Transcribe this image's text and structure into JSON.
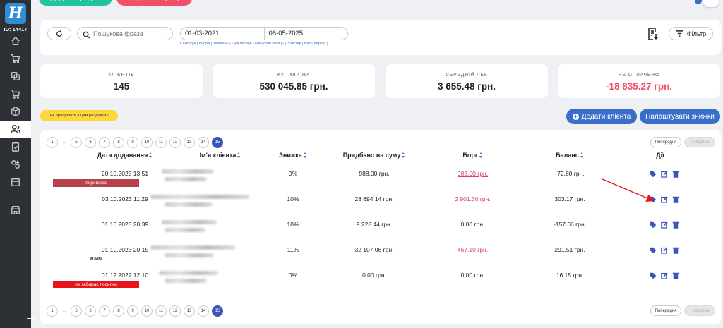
{
  "sidebar": {
    "logo_letter": "H",
    "user_id": "ID: 14417",
    "items": [
      {
        "icon": "home-icon"
      },
      {
        "icon": "cart-icon"
      },
      {
        "icon": "copy-icon"
      },
      {
        "icon": "cart-outline-icon"
      },
      {
        "icon": "box-icon"
      },
      {
        "icon": "clients-icon",
        "active": true
      },
      {
        "icon": "clipboard-check-icon"
      },
      {
        "icon": "circles-icon"
      },
      {
        "icon": "calendar-icon"
      },
      {
        "icon": "store-icon"
      }
    ],
    "collapse_icon": "arrow-right-icon"
  },
  "top_buttons": {
    "add_sale": "Додати продаж",
    "add_expense": "Додати витрату"
  },
  "filter": {
    "search_placeholder": "Пошукова фраза",
    "date_from": "01-03-2021",
    "date_to": "06-05-2025",
    "quick_ranges": "Сьогодні | Вчора | Тиждень | Цей місяць | Минулий місяць | 3 місяці | Весь період |",
    "filter_label": "Фільтр"
  },
  "stats": [
    {
      "label": "КЛІЄНТІВ",
      "value": "145"
    },
    {
      "label": "КУПИЛИ НА",
      "value": "530 045.85 грн."
    },
    {
      "label": "СЕРЕДНІЙ ЧЕК",
      "value": "3 655.48 грн."
    },
    {
      "label": "НЕ ОПЛАЧЕНО",
      "value": "-18 835.27 грн."
    }
  ],
  "help_label": "Як працювати з цим розділом?",
  "actions": {
    "add_client": "Додати клієнта",
    "setup_discounts": "Налаштувати знижки"
  },
  "pagination": {
    "pages": [
      "1",
      "...",
      "5",
      "6",
      "7",
      "8",
      "9",
      "10",
      "11",
      "12",
      "13",
      "14",
      "15"
    ],
    "current": "15",
    "prev": "Попередня",
    "next": "Наступна"
  },
  "table": {
    "columns": [
      "Дата додавання",
      "Ім'я клієнта",
      "Знижка",
      "Придбано на суму",
      "Борг",
      "Баланс",
      "Дії"
    ],
    "rows": [
      {
        "date": "20.10.2023 13:51",
        "discount": "0%",
        "bought": "988.00 грн.",
        "debt": "988.00 грн.",
        "debt_owed": true,
        "balance": "-72.80 грн.",
        "tag": "перевірка",
        "tag_color": "#b5434c"
      },
      {
        "date": "03.10.2023 11:29",
        "discount": "10%",
        "bought": "28 694.14 грн.",
        "debt": "2 901.30 грн.",
        "debt_owed": true,
        "balance": "303.17 грн."
      },
      {
        "date": "01.10.2023 20:39",
        "discount": "10%",
        "bought": "9 228.44 грн.",
        "debt": "0.00 грн.",
        "debt_owed": false,
        "balance": "-157.66 грн."
      },
      {
        "date": "01.10.2023 20:15",
        "discount": "11%",
        "bought": "32 107.06 грн.",
        "debt": "467.10 грн.",
        "debt_owed": true,
        "balance": "291.51 грн.",
        "note": "RAIN"
      },
      {
        "date": "01.12.2022 12:10",
        "discount": "0%",
        "bought": "0.00 грн.",
        "debt": "0.00 грн.",
        "debt_owed": false,
        "balance": "16.15 грн.",
        "tag": "не забирає посилки",
        "tag_color": "#e8141c"
      }
    ],
    "row_actions": [
      "tag-icon",
      "edit-icon",
      "trash-icon"
    ]
  },
  "colors": {
    "accent": "#3a6fc9",
    "pager_active": "#3a55b7",
    "negative": "#f2506a",
    "green": "#22c3a0",
    "annotation_arrow": "#e8141c"
  }
}
